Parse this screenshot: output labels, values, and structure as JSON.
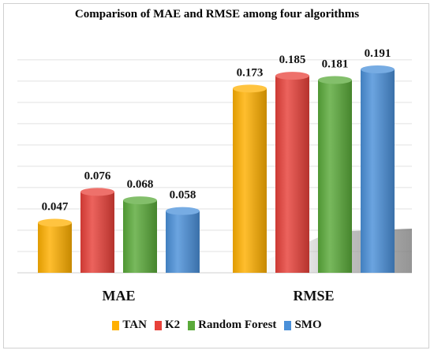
{
  "chart_data": {
    "type": "bar",
    "title": "Comparison of MAE and RMSE among four algorithms",
    "categories": [
      "MAE",
      "RMSE"
    ],
    "series": [
      {
        "name": "TAN",
        "values": [
          0.047,
          0.173
        ],
        "color": "#ffb000"
      },
      {
        "name": "K2",
        "values": [
          0.076,
          0.185
        ],
        "color": "#e8413a"
      },
      {
        "name": "Random Forest",
        "values": [
          0.068,
          0.181
        ],
        "color": "#5aaa3a"
      },
      {
        "name": "SMO",
        "values": [
          0.058,
          0.191
        ],
        "color": "#4a90d9"
      }
    ],
    "value_labels": [
      [
        "0.047",
        "0.173"
      ],
      [
        "0.076",
        "0.185"
      ],
      [
        "0.068",
        "0.181"
      ],
      [
        "0.058",
        "0.191"
      ]
    ],
    "ylim": [
      0,
      0.2
    ],
    "grid": true,
    "legend_position": "bottom"
  }
}
